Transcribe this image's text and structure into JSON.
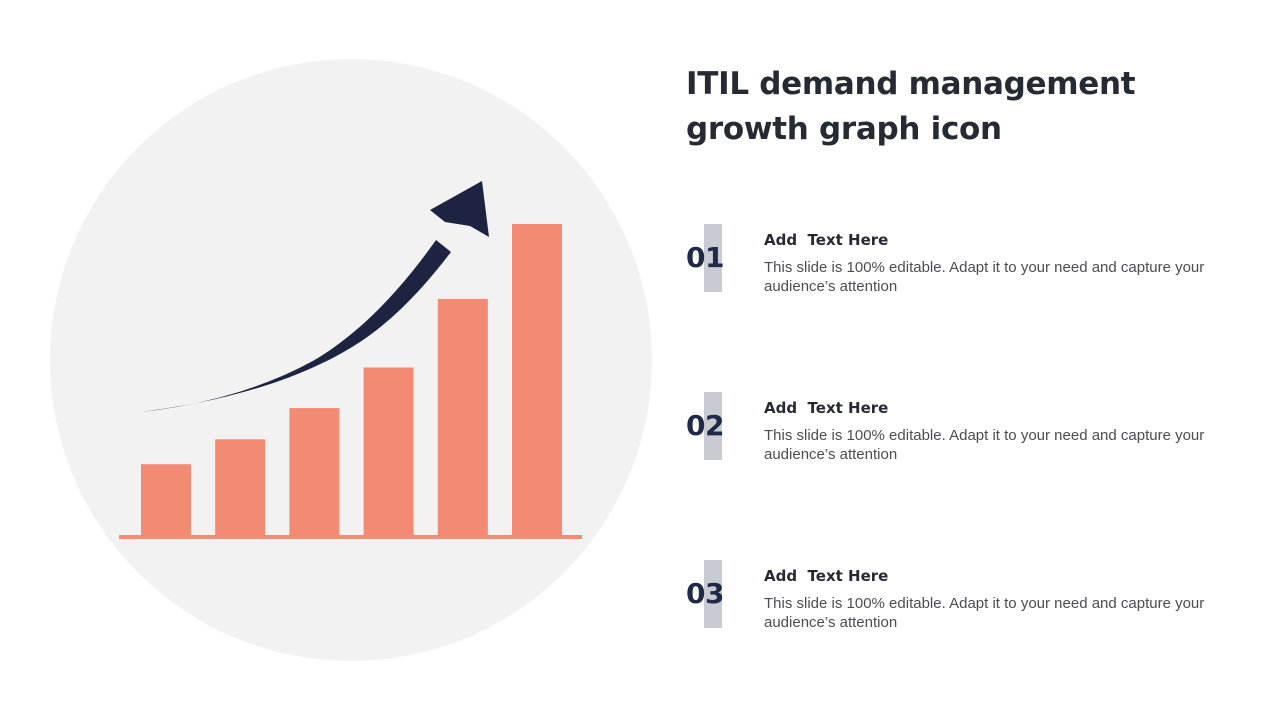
{
  "slide": {
    "title": "ITIL demand management growth graph icon",
    "items": [
      {
        "number": "01",
        "heading": "Add  Text Here",
        "body": "This slide is 100% editable. Adapt it to your need and capture your audience’s attention"
      },
      {
        "number": "02",
        "heading": "Add  Text Here",
        "body": "This slide is 100% editable. Adapt it to your need and capture your audience’s attention"
      },
      {
        "number": "03",
        "heading": "Add  Text Here",
        "body": "This slide is 100% editable. Adapt it to your need and capture your audience’s attention"
      }
    ]
  },
  "illustration": {
    "icons": [
      "growth-graph-icon",
      "upward-arrow-icon"
    ],
    "bar_levels": [
      0.23,
      0.31,
      0.41,
      0.54,
      0.76,
      1.0
    ],
    "colors": {
      "circle": "#f2f2f2",
      "bars": "#f28a74",
      "arrow": "#1c2442",
      "number_marker": "#c8cbd2"
    }
  }
}
